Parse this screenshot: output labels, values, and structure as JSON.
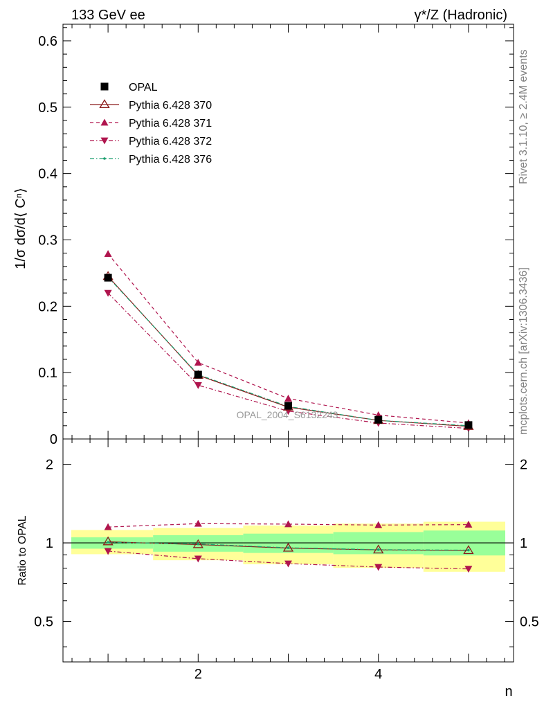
{
  "header": {
    "left": "133 GeV ee",
    "right": "γ*/Z (Hadronic)"
  },
  "side_text": {
    "rivet": "Rivet 3.1.10, ≥ 2.4M events",
    "mcplots": "mcplots.cern.ch [arXiv:1306.3436]"
  },
  "watermark": "OPAL_2004_S6132243",
  "chart_data": [
    {
      "type": "line",
      "panel": "main",
      "ylabel": "1/σ dσ/d⟨ Cⁿ⟩",
      "xlabel": "n",
      "xlim": [
        0.5,
        5.5
      ],
      "ylim": [
        0,
        0.625
      ],
      "y_ticks": [
        0,
        0.1,
        0.2,
        0.3,
        0.4,
        0.5,
        0.6
      ],
      "y_tick_labels": [
        "0",
        "0.1",
        "0.2",
        "0.3",
        "0.4",
        "0.5",
        "0.6"
      ],
      "x": [
        1,
        2,
        3,
        4,
        5
      ],
      "legend_position": "top-left",
      "series": [
        {
          "name": "OPAL",
          "values": [
            0.243,
            0.097,
            0.05,
            0.029,
            0.021
          ],
          "color": "#000000",
          "marker": "square",
          "line": "none"
        },
        {
          "name": "Pythia 6.428 370",
          "values": [
            0.245,
            0.096,
            0.048,
            0.028,
            0.019
          ],
          "color": "#8b1a1a",
          "marker": "open-triangle-up",
          "line": "solid"
        },
        {
          "name": "Pythia 6.428 371",
          "values": [
            0.279,
            0.115,
            0.061,
            0.036,
            0.024
          ],
          "color": "#b0154e",
          "marker": "triangle-up",
          "line": "dashed"
        },
        {
          "name": "Pythia 6.428 372",
          "values": [
            0.22,
            0.081,
            0.042,
            0.024,
            0.016
          ],
          "color": "#b0154e",
          "marker": "triangle-down",
          "line": "dashdot"
        },
        {
          "name": "Pythia 6.428 376",
          "values": [
            0.244,
            0.097,
            0.049,
            0.028,
            0.02
          ],
          "color": "#1a9e6e",
          "marker": "dot",
          "line": "dashdot"
        }
      ]
    },
    {
      "type": "line",
      "panel": "ratio",
      "ylabel": "Ratio to OPAL",
      "xlabel": "n",
      "xlim": [
        0.5,
        5.5
      ],
      "ylim": [
        0.35,
        2.5
      ],
      "y_scale": "log",
      "y_ticks": [
        0.5,
        1,
        2
      ],
      "y_tick_labels": [
        "0.5",
        "1",
        "2"
      ],
      "x_ticks": [
        2,
        4
      ],
      "x_tick_labels": [
        "2",
        "4"
      ],
      "x": [
        1,
        2,
        3,
        4,
        5
      ],
      "bands": [
        {
          "kind": "total-uncertainty",
          "color": "#ffff99",
          "low": [
            0.905,
            0.858,
            0.828,
            0.802,
            0.775
          ],
          "high": [
            1.12,
            1.14,
            1.165,
            1.185,
            1.205
          ]
        },
        {
          "kind": "stat-uncertainty",
          "color": "#99ff99",
          "low": [
            0.95,
            0.925,
            0.915,
            0.905,
            0.895
          ],
          "high": [
            1.05,
            1.07,
            1.085,
            1.1,
            1.115
          ]
        }
      ],
      "reference": 1,
      "series": [
        {
          "name": "Pythia 6.428 370",
          "values": [
            1.01,
            0.985,
            0.955,
            0.94,
            0.935
          ]
        },
        {
          "name": "Pythia 6.428 371",
          "values": [
            1.15,
            1.185,
            1.18,
            1.17,
            1.175
          ]
        },
        {
          "name": "Pythia 6.428 372",
          "values": [
            0.93,
            0.87,
            0.833,
            0.808,
            0.795
          ]
        },
        {
          "name": "Pythia 6.428 376",
          "values": [
            1.005,
            0.99,
            0.958,
            0.942,
            0.938
          ]
        }
      ]
    }
  ]
}
